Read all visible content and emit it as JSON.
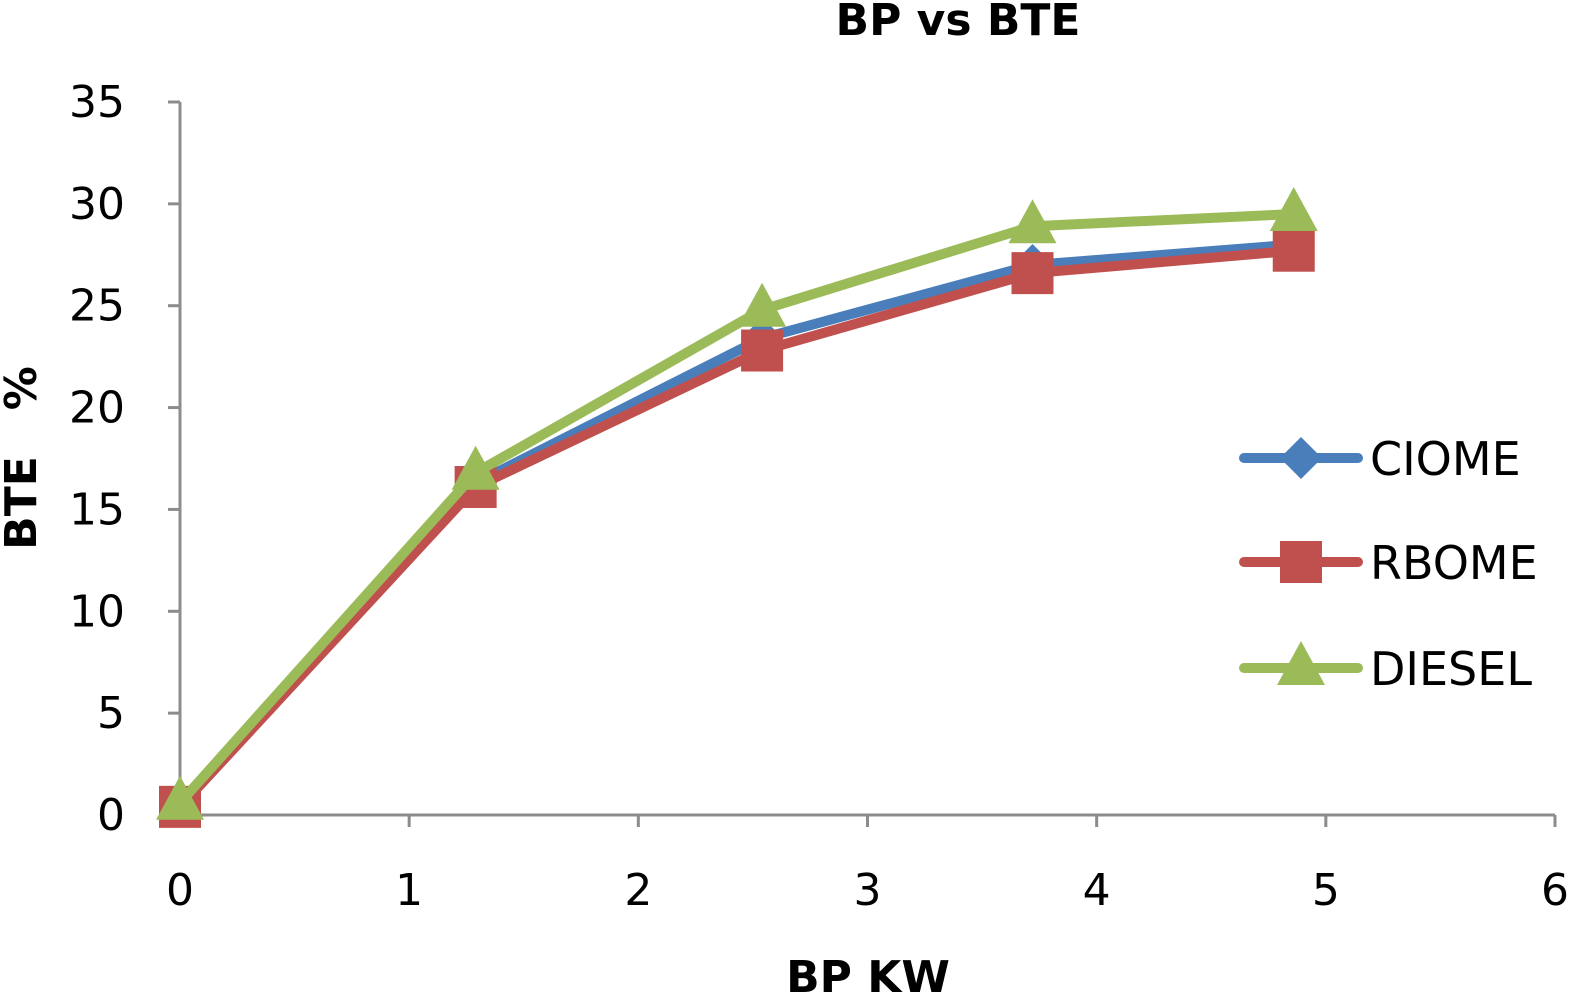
{
  "chart_data": {
    "type": "line",
    "title": "BP vs BTE",
    "xlabel": "BP KW",
    "ylabel": "BTE   %",
    "xlim": [
      0,
      6
    ],
    "ylim": [
      0,
      35
    ],
    "x_ticks": [
      "0",
      "1",
      "2",
      "3",
      "4",
      "5",
      "6"
    ],
    "y_ticks": [
      "0",
      "5",
      "10",
      "15",
      "20",
      "25",
      "30",
      "35"
    ],
    "grid": false,
    "legend_position": "right",
    "series": [
      {
        "name": "CIOME",
        "color": "#4a7ebb",
        "marker": "diamond",
        "x": [
          0,
          1.29,
          2.54,
          3.72,
          4.86
        ],
        "y": [
          0.5,
          16.3,
          23.4,
          27.0,
          28.0
        ]
      },
      {
        "name": "RBOME",
        "color": "#c0504d",
        "marker": "square",
        "x": [
          0,
          1.29,
          2.54,
          3.72,
          4.86
        ],
        "y": [
          0.4,
          16.1,
          22.8,
          26.6,
          27.7
        ]
      },
      {
        "name": "DIESEL",
        "color": "#9bbb59",
        "marker": "triangle",
        "x": [
          0,
          1.29,
          2.54,
          3.72,
          4.86
        ],
        "y": [
          0.6,
          16.8,
          24.8,
          28.9,
          29.5
        ]
      }
    ]
  }
}
